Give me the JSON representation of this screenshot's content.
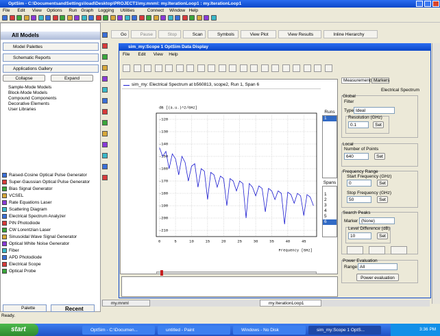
{
  "window": {
    "title": "OptSim - C:\\DocumentsandSettings\\load\\Desktop\\PROJECT1\\my.mnml: my.IterationLoop1 : my.IterationLoop1"
  },
  "menu": [
    "File",
    "Edit",
    "View",
    "Options",
    "Run",
    "Graph",
    "Logging",
    "Utilities",
    "Connect",
    "Window",
    "Help"
  ],
  "sidebar": {
    "header": "All Models",
    "buttons": [
      "Model Palettes",
      "Schematic Reports",
      "Applications Gallery"
    ],
    "collapse": "Collapse",
    "expand": "Expand",
    "tree": [
      "Sample-Mode Models",
      "Block-Mode Models",
      "Compound Components",
      "Decorative Elements",
      "User Libraries"
    ],
    "components": [
      "Raised-Cosine Optical Pulse Generator",
      "Super-Gaussian Optical Pulse Generator",
      "Bias Signal Generator",
      "VCSEL",
      "Rate Equations Laser",
      "Scattering Diagram",
      "Electrical Spectrum Analyzer",
      "PIN Photodiode",
      "CW Lorentzian Laser",
      "Sinusoidal Wave Signal Generator",
      "Optical White Noise Generator",
      "Fiber",
      "APD Photodiode",
      "Electrical Scope",
      "Optical Probe"
    ],
    "tabs": [
      "Palette",
      "Recent"
    ]
  },
  "toolbar": [
    "Go",
    "Pause",
    "Stop",
    "Scan",
    "Symbols",
    "View Plot",
    "View Results",
    "Inline Hierarchy"
  ],
  "display": {
    "title": "sim_my:Scope 1 OptSim Data Display",
    "menu": [
      "File",
      "Edit",
      "View",
      "Help"
    ],
    "legend": "sim_my: Electrical Spectrum at b560813, scope2, Run 1, Span 6",
    "runs_label": "Runs",
    "runs": [
      "1"
    ],
    "spans_label": "Spans",
    "spans": [
      "1",
      "2",
      "3",
      "4",
      "5",
      "6"
    ],
    "tabs": [
      "Measurements",
      "Markers"
    ],
    "panel": {
      "title": "Electrical Spectrum",
      "global": "Global",
      "filter": "Filter",
      "type_label": "Type",
      "type_value": "Ideal",
      "resolution_label": "Resolution (GHz)",
      "resolution_value": "0.1",
      "set": "Set",
      "local": "Local",
      "points_label": "Number of Points",
      "points_value": "640",
      "freq_range": "Frequency Range",
      "start_label": "Start Frequency (GHz)",
      "start_value": "0",
      "stop_label": "Stop Frequency (GHz)",
      "stop_value": "50",
      "search": "Search Peaks",
      "marker_label": "Marker",
      "marker_value": "(None)",
      "level_label": "Level Difference (dB)",
      "level_value": "10",
      "power": "Power Evaluation",
      "range_label": "Range",
      "range_value": "All",
      "power_button": "Power evaluation"
    }
  },
  "chart_data": {
    "type": "line",
    "y_label": "dB [(a.u.)^2/GHz]",
    "x_label": "Frequency [GHz]",
    "x": [
      0,
      1,
      2,
      3,
      4,
      5,
      6,
      7,
      8,
      9,
      10,
      11,
      12,
      13,
      14,
      15,
      16,
      17,
      18,
      19,
      20,
      21,
      22,
      23,
      24,
      25,
      26,
      27,
      28,
      29,
      30,
      31,
      32,
      33,
      34,
      35,
      36,
      37,
      38,
      39,
      40,
      41,
      42,
      43,
      44,
      45,
      46,
      47,
      48
    ],
    "series": [
      {
        "name": "sim_my: Electrical Spectrum at b560813, scope2, Run 1, Span 6",
        "color": "#1a1ad0",
        "values": [
          -143,
          -150,
          -146,
          -160,
          -148,
          -152,
          -165,
          -150,
          -155,
          -170,
          -158,
          -156,
          -175,
          -160,
          -162,
          -185,
          -163,
          -165,
          -175,
          -166,
          -168,
          -190,
          -168,
          -170,
          -178,
          -170,
          -172,
          -200,
          -172,
          -175,
          -182,
          -174,
          -176,
          -195,
          -176,
          -178,
          -185,
          -178,
          -180,
          -205,
          -179,
          -181,
          -188,
          -180,
          -182,
          -198,
          -181,
          -183,
          -190
        ]
      }
    ],
    "xlim": [
      -1,
      49
    ],
    "xticks": [
      0,
      5,
      10,
      15,
      20,
      25,
      30,
      35,
      40,
      45
    ],
    "ylim": [
      -215,
      -115
    ],
    "yticks": [
      -120,
      -130,
      -140,
      -150,
      -160,
      -170,
      -180,
      -190,
      -200,
      -210
    ],
    "grid": true
  },
  "bottom_tabs": [
    "my.mnml",
    "my.IterationLoop1"
  ],
  "status": "Ready.",
  "taskbar": {
    "start": "start",
    "items": [
      "OptSim - C:\\Documen...",
      "untitled - Paint",
      "Windows - No Disk",
      "sim_my:Scope 1 OptS..."
    ],
    "clock": "3:36 PM"
  }
}
